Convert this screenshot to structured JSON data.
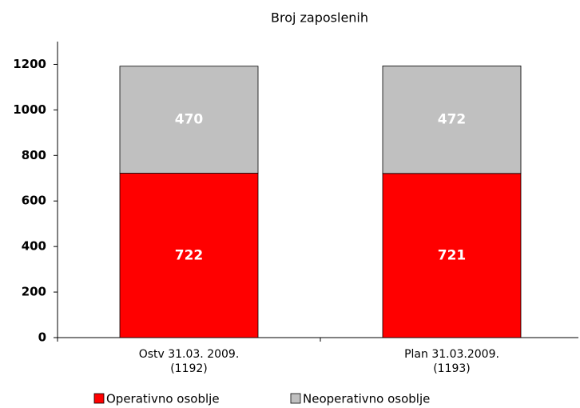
{
  "chart_data": {
    "type": "stacked_bar",
    "title": "Broj zaposlenih",
    "categories": [
      [
        "Ostv 31.03. 2009.",
        "(1192)"
      ],
      [
        "Plan 31.03.2009.",
        "(1193)"
      ]
    ],
    "series": [
      {
        "name": "Operativno osoblje",
        "color": "#ff0000",
        "values": [
          722,
          721
        ]
      },
      {
        "name": "Neoperativno osoblje",
        "color": "#c0c0c0",
        "values": [
          470,
          472
        ]
      }
    ],
    "ylim": [
      0,
      1300
    ],
    "yticks": [
      0,
      200,
      400,
      600,
      800,
      1000,
      1200
    ],
    "grid": false,
    "legend": "bottom"
  }
}
